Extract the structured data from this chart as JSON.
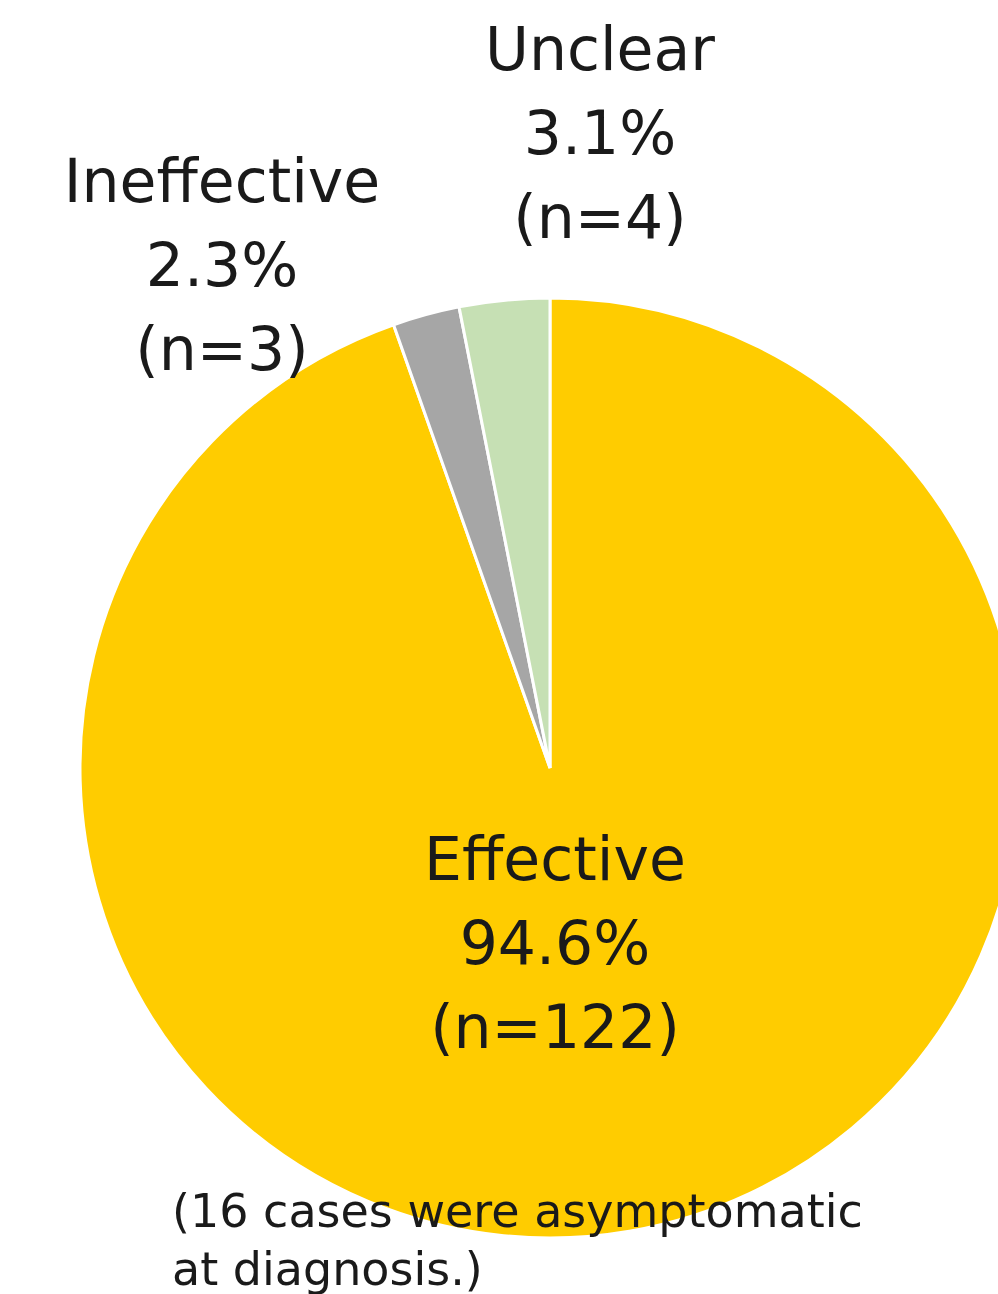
{
  "chart_data": {
    "type": "pie",
    "categories": [
      "Effective",
      "Ineffective",
      "Unclear"
    ],
    "values": [
      94.6,
      2.3,
      3.1
    ],
    "colors": [
      "#ffcc00",
      "#a6a6a6",
      "#c6e0b4"
    ],
    "value_labels": [
      "94.6%\n(n=122)",
      "2.3%\n(n=3)",
      "3.1%\n(n=4)"
    ],
    "annotations": [
      "(16 cases were asymptomatic at diagnosis.)"
    ],
    "legend": false
  }
}
